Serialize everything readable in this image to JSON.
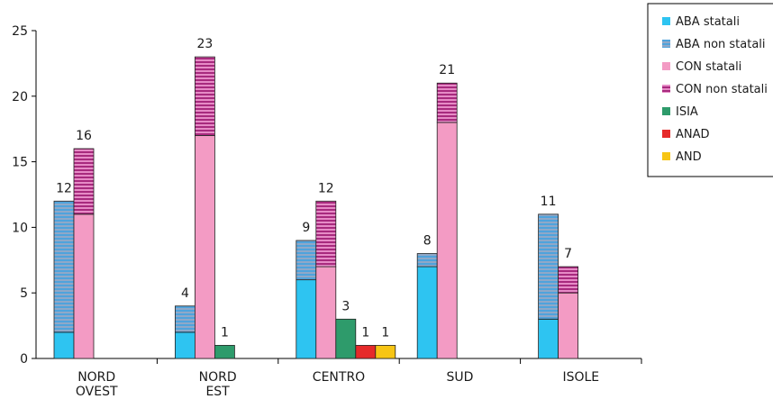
{
  "chart_data": {
    "type": "bar",
    "stacked": true,
    "categories": [
      "NORD\nOVEST",
      "NORD\nEST",
      "CENTRO",
      "SUD",
      "ISOLE"
    ],
    "ylim": [
      0,
      25
    ],
    "yticks": [
      0,
      5,
      10,
      15,
      20,
      25
    ],
    "legend_position": "top-right",
    "series": [
      {
        "name": "ABA statali",
        "color": "#2EC4F1",
        "pattern": "solid"
      },
      {
        "name": "ABA non statali",
        "color": "#5A8FC2",
        "pattern": "stripes"
      },
      {
        "name": "CON statali",
        "color": "#F39BC4",
        "pattern": "solid"
      },
      {
        "name": "CON non statali",
        "color": "#B2347F",
        "pattern": "stripes"
      },
      {
        "name": "ISIA",
        "color": "#2E9B6B",
        "pattern": "solid"
      },
      {
        "name": "ANAD",
        "color": "#E62A2A",
        "pattern": "solid"
      },
      {
        "name": "AND",
        "color": "#F7C514",
        "pattern": "solid"
      }
    ],
    "bars": [
      {
        "category": 0,
        "group": "ABA",
        "segments": [
          {
            "series": "ABA statali",
            "value": 2
          },
          {
            "series": "ABA non statali",
            "value": 10
          }
        ],
        "total_label": "12"
      },
      {
        "category": 0,
        "group": "CON",
        "segments": [
          {
            "series": "CON statali",
            "value": 11
          },
          {
            "series": "CON non statali",
            "value": 5
          }
        ],
        "total_label": "16"
      },
      {
        "category": 1,
        "group": "ABA",
        "segments": [
          {
            "series": "ABA statali",
            "value": 2
          },
          {
            "series": "ABA non statali",
            "value": 2
          }
        ],
        "total_label": "4"
      },
      {
        "category": 1,
        "group": "CON",
        "segments": [
          {
            "series": "CON statali",
            "value": 17
          },
          {
            "series": "CON non statali",
            "value": 6
          }
        ],
        "total_label": "23"
      },
      {
        "category": 1,
        "group": "ISIA",
        "segments": [
          {
            "series": "ISIA",
            "value": 1
          }
        ],
        "total_label": "1"
      },
      {
        "category": 2,
        "group": "ABA",
        "segments": [
          {
            "series": "ABA statali",
            "value": 6
          },
          {
            "series": "ABA non statali",
            "value": 3
          }
        ],
        "total_label": "9"
      },
      {
        "category": 2,
        "group": "CON",
        "segments": [
          {
            "series": "CON statali",
            "value": 7
          },
          {
            "series": "CON non statali",
            "value": 5
          }
        ],
        "total_label": "12"
      },
      {
        "category": 2,
        "group": "ISIA",
        "segments": [
          {
            "series": "ISIA",
            "value": 3
          }
        ],
        "total_label": "3"
      },
      {
        "category": 2,
        "group": "ANAD",
        "segments": [
          {
            "series": "ANAD",
            "value": 1
          }
        ],
        "total_label": "1"
      },
      {
        "category": 2,
        "group": "AND",
        "segments": [
          {
            "series": "AND",
            "value": 1
          }
        ],
        "total_label": "1"
      },
      {
        "category": 3,
        "group": "ABA",
        "segments": [
          {
            "series": "ABA statali",
            "value": 7
          },
          {
            "series": "ABA non statali",
            "value": 1
          }
        ],
        "total_label": "8"
      },
      {
        "category": 3,
        "group": "CON",
        "segments": [
          {
            "series": "CON statali",
            "value": 18
          },
          {
            "series": "CON non statali",
            "value": 3
          }
        ],
        "total_label": "21"
      },
      {
        "category": 4,
        "group": "ABA",
        "segments": [
          {
            "series": "ABA statali",
            "value": 3
          },
          {
            "series": "ABA non statali",
            "value": 8
          }
        ],
        "total_label": "11"
      },
      {
        "category": 4,
        "group": "CON",
        "segments": [
          {
            "series": "CON statali",
            "value": 5
          },
          {
            "series": "CON non statali",
            "value": 2
          }
        ],
        "total_label": "7"
      }
    ]
  }
}
